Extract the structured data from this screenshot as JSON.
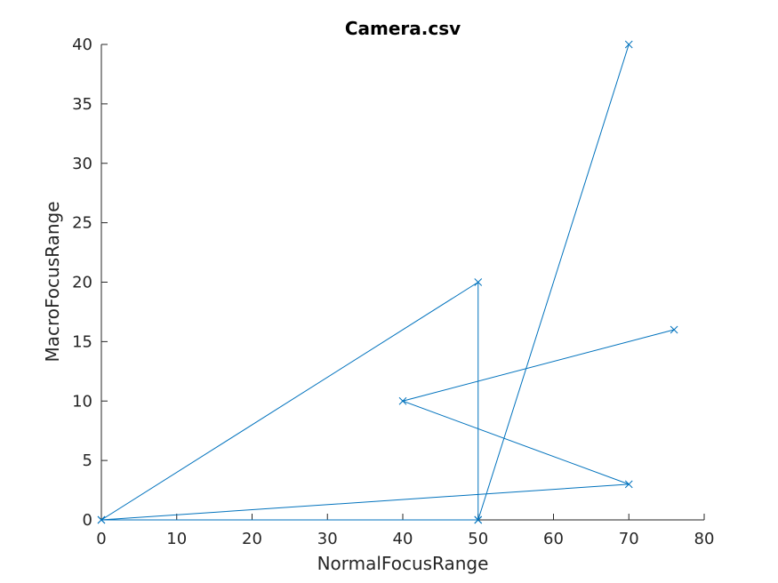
{
  "chart_data": {
    "type": "line",
    "title": "Camera.csv",
    "xlabel": "NormalFocusRange",
    "ylabel": "MacroFocusRange",
    "xlim": [
      0,
      80
    ],
    "ylim": [
      0,
      40
    ],
    "xticks": [
      0,
      10,
      20,
      30,
      40,
      50,
      60,
      70,
      80
    ],
    "yticks": [
      0,
      5,
      10,
      15,
      20,
      25,
      30,
      35,
      40
    ],
    "grid": false,
    "marker": "x",
    "color": "#0072bd",
    "points": [
      {
        "x": 0,
        "y": 0
      },
      {
        "x": 50,
        "y": 0
      },
      {
        "x": 0,
        "y": 0
      },
      {
        "x": 70,
        "y": 3
      },
      {
        "x": 40,
        "y": 10
      },
      {
        "x": 76,
        "y": 16
      },
      {
        "x": 50,
        "y": 11.7
      }
    ],
    "series_points": [
      [
        0,
        0
      ],
      [
        50,
        20
      ],
      [
        50,
        0
      ],
      [
        70,
        40
      ],
      [
        50,
        0
      ],
      [
        0,
        0
      ],
      [
        70,
        3
      ],
      [
        40,
        10
      ],
      [
        76,
        16
      ]
    ]
  }
}
